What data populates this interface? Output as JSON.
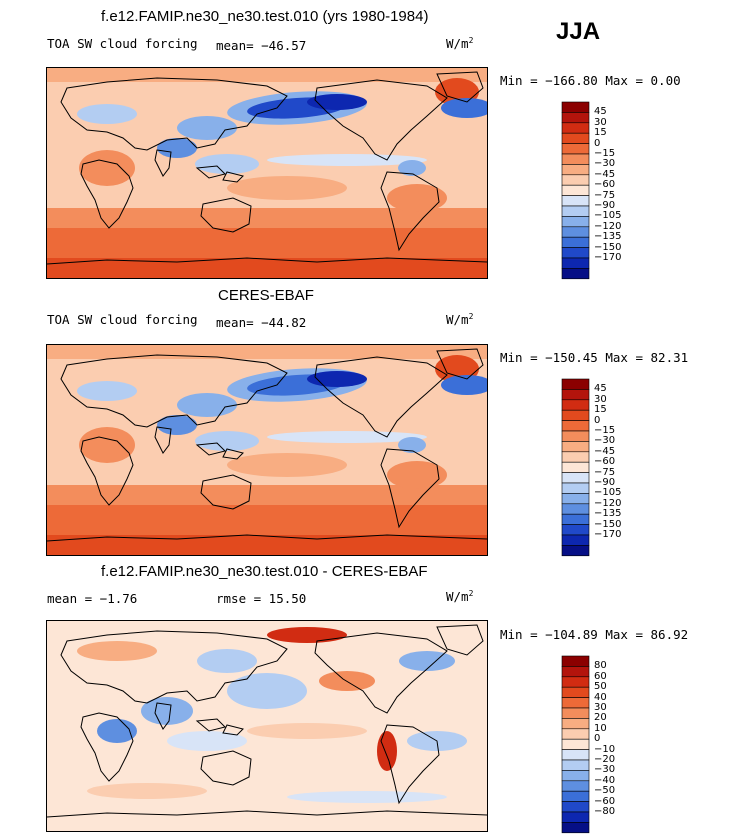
{
  "season": "JJA",
  "palettes": {
    "abs": [
      "#8b0000",
      "#b3140c",
      "#d12c12",
      "#e24a1e",
      "#ed6a38",
      "#f38d5c",
      "#f8ad82",
      "#fbcdb0",
      "#fde6d6",
      "#d8e4f7",
      "#b3cdf2",
      "#88b0ea",
      "#5e8fe0",
      "#3b6fd8",
      "#2049c9",
      "#0d27b0",
      "#060f86"
    ],
    "diff": [
      "#8b0000",
      "#b3140c",
      "#d12c12",
      "#e24a1e",
      "#ed6a38",
      "#f38d5c",
      "#f8ad82",
      "#fbcdb0",
      "#fde6d6",
      "#d8e4f7",
      "#b3cdf2",
      "#88b0ea",
      "#5e8fe0",
      "#3b6fd8",
      "#2049c9",
      "#0d27b0",
      "#060f86"
    ]
  },
  "panels": [
    {
      "title": "f.e12.FAMIP.ne30_ne30.test.010 (yrs 1980-1984)",
      "left_label": "TOA SW cloud forcing",
      "mean_text": "mean= −46.57",
      "units": "W/m",
      "units_sup": "2",
      "minmax_text": "Min = −166.80 Max =   0.00",
      "levels": [
        "45",
        "30",
        "15",
        "0",
        "−15",
        "−30",
        "−45",
        "−60",
        "−75",
        "−90",
        "−105",
        "−120",
        "−135",
        "−150",
        "−170"
      ]
    },
    {
      "title": "CERES-EBAF",
      "left_label": "TOA SW cloud forcing",
      "mean_text": "mean= −44.82",
      "units": "W/m",
      "units_sup": "2",
      "minmax_text": "Min = −150.45 Max =  82.31",
      "levels": [
        "45",
        "30",
        "15",
        "0",
        "−15",
        "−30",
        "−45",
        "−60",
        "−75",
        "−90",
        "−105",
        "−120",
        "−135",
        "−150",
        "−170"
      ]
    },
    {
      "title": "f.e12.FAMIP.ne30_ne30.test.010 - CERES-EBAF",
      "left_label": "mean =   −1.76",
      "mean_text": "rmse =   15.50",
      "units": "W/m",
      "units_sup": "2",
      "minmax_text": "Min = −104.89 Max =  86.92",
      "levels": [
        "80",
        "60",
        "50",
        "40",
        "30",
        "20",
        "10",
        "0",
        "−10",
        "−20",
        "−30",
        "−40",
        "−50",
        "−60",
        "−80"
      ]
    }
  ]
}
